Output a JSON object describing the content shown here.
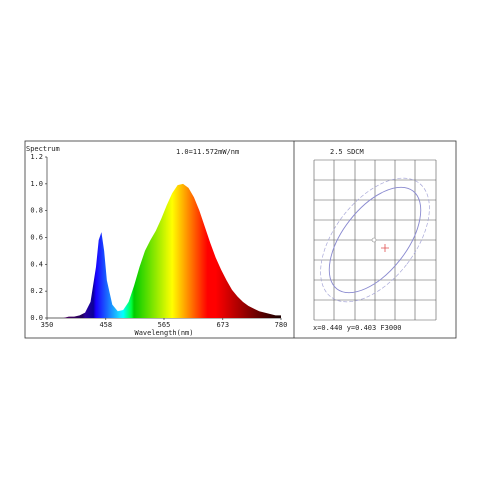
{
  "chart_data": {
    "type": "area",
    "title": "Spectrum",
    "subtitle": "1.0=11.572mW/nm",
    "x_label": "Wavelength(nm)",
    "x": [
      350,
      360,
      370,
      380,
      390,
      400,
      410,
      420,
      430,
      440,
      445,
      450,
      455,
      460,
      470,
      480,
      490,
      500,
      510,
      520,
      530,
      540,
      550,
      560,
      570,
      580,
      590,
      600,
      610,
      620,
      630,
      640,
      650,
      660,
      670,
      680,
      690,
      700,
      710,
      720,
      730,
      740,
      750,
      760,
      770,
      780
    ],
    "values": [
      0,
      0,
      0,
      0,
      0.01,
      0.01,
      0.02,
      0.04,
      0.12,
      0.38,
      0.58,
      0.64,
      0.5,
      0.28,
      0.1,
      0.05,
      0.06,
      0.12,
      0.24,
      0.38,
      0.5,
      0.58,
      0.65,
      0.74,
      0.84,
      0.93,
      0.99,
      1.0,
      0.97,
      0.9,
      0.8,
      0.68,
      0.56,
      0.45,
      0.36,
      0.28,
      0.21,
      0.16,
      0.12,
      0.09,
      0.07,
      0.05,
      0.04,
      0.03,
      0.02,
      0.02
    ],
    "xlim": [
      350,
      780
    ],
    "xticks": [
      350,
      458,
      565,
      673,
      780
    ],
    "ylim": [
      0,
      1.2
    ],
    "yticks": [
      {
        "value": 0,
        "label": "0.0"
      },
      {
        "value": 0.2,
        "label": "0.2"
      },
      {
        "value": 0.4,
        "label": "0.4"
      },
      {
        "value": 0.6,
        "label": "0.6"
      },
      {
        "value": 0.8,
        "label": "0.8"
      },
      {
        "value": 1.0,
        "label": "1.0"
      },
      {
        "value": 1.2,
        "label": "1.2"
      }
    ]
  },
  "chromaticity": {
    "title": "2.5 SDCM",
    "readout": "x=0.440 y=0.403 F3000"
  }
}
